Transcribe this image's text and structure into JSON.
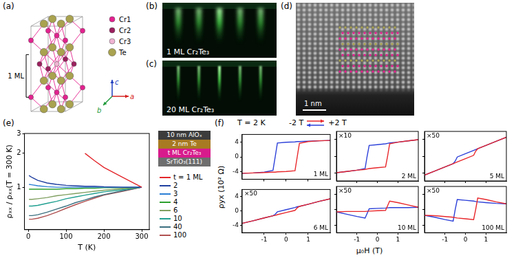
{
  "figure": {
    "a": {
      "letter": "(a)",
      "atoms": [
        {
          "label": "Cr1",
          "color": "#e4218f"
        },
        {
          "label": "Cr2",
          "color": "#9c1f5e"
        },
        {
          "label": "Cr3",
          "color": "#efb3d2"
        },
        {
          "label": "Te",
          "color": "#a9a24f"
        }
      ],
      "layer_label": "1 ML",
      "axes": [
        {
          "label": "c",
          "color": "#1f3fbf"
        },
        {
          "label": "a",
          "color": "#d62020"
        },
        {
          "label": "b",
          "color": "#1f9a3a"
        }
      ]
    },
    "b": {
      "letter": "(b)",
      "label": "1 ML Cr₂Te₃"
    },
    "c": {
      "letter": "(c)",
      "label": "20 ML Cr₂Te₃"
    },
    "d": {
      "letter": "(d)",
      "scale_bar": "1 nm"
    },
    "e": {
      "letter": "(e)"
    },
    "f": {
      "letter": "(f)",
      "condition": "T = 2 K",
      "sweep": {
        "start": "-2 T",
        "end": "+2 T",
        "colors": [
          "#e8262a",
          "#2b3fd8"
        ]
      },
      "x_label": "μ₀H (T)",
      "y_label": "ρyx (10² Ω)"
    }
  },
  "chart_data": [
    {
      "type": "line",
      "x_label": "T (K)",
      "y_label": "ρₓₓ / ρₓₓ(T = 300 K)",
      "x": [
        2,
        10,
        25,
        50,
        75,
        100,
        125,
        150,
        175,
        200,
        250,
        300
      ],
      "series": [
        {
          "name": "t = 1 ML",
          "color": "#e3262b",
          "values": [
            null,
            null,
            null,
            null,
            null,
            null,
            null,
            2.0,
            1.72,
            1.5,
            1.22,
            1
          ]
        },
        {
          "name": "2",
          "color": "#1f3f9f",
          "values": [
            1.27,
            1.22,
            1.15,
            1.09,
            1.06,
            1.04,
            1.03,
            1.02,
            1.02,
            1.01,
            1,
            1
          ]
        },
        {
          "name": "3",
          "color": "#2a7fd4",
          "values": [
            1.06,
            1.05,
            1.03,
            1.01,
            1,
            1,
            1,
            1,
            1,
            1,
            1,
            1
          ]
        },
        {
          "name": "4",
          "color": "#2ca02c",
          "values": [
            0.96,
            0.96,
            0.96,
            0.96,
            0.96,
            0.97,
            0.97,
            0.98,
            0.98,
            0.99,
            0.99,
            1
          ]
        },
        {
          "name": "6",
          "color": "#7f9f5f",
          "values": [
            0.78,
            0.78,
            0.79,
            0.81,
            0.84,
            0.86,
            0.88,
            0.9,
            0.92,
            0.94,
            0.97,
            1
          ]
        },
        {
          "name": "10",
          "color": "#1f9f8f",
          "values": [
            0.68,
            0.68,
            0.69,
            0.72,
            0.75,
            0.79,
            0.82,
            0.85,
            0.88,
            0.91,
            0.95,
            1
          ]
        },
        {
          "name": "40",
          "color": "#3a6f7f",
          "values": [
            0.56,
            0.56,
            0.57,
            0.6,
            0.64,
            0.68,
            0.73,
            0.77,
            0.82,
            0.86,
            0.93,
            1
          ]
        },
        {
          "name": "100",
          "color": "#b05050",
          "values": [
            0.52,
            0.52,
            0.53,
            0.56,
            0.6,
            0.65,
            0.7,
            0.75,
            0.8,
            0.85,
            0.92,
            1
          ]
        }
      ],
      "xlim": [
        -10,
        320
      ],
      "xticks": [
        0,
        100,
        200,
        300
      ],
      "ylim": [
        0.42,
        3
      ],
      "yticks": [
        1,
        2,
        3
      ],
      "log": "y",
      "grid": false,
      "legend": "right",
      "annotations": [
        {
          "text": "10 nm AlOₓ",
          "color": "#3c3c3c"
        },
        {
          "text": "2 nm Te",
          "color": "#a87a22"
        },
        {
          "text": "t ML Cr₂Te₃",
          "color": "#d81b8c"
        },
        {
          "text": "SrTiO₃(111)",
          "color": "#6e6e6e"
        }
      ]
    },
    {
      "type": "line",
      "title": "1 ML",
      "x": [
        -2,
        -1.5,
        -1,
        -0.6,
        -0.5,
        -0.4,
        0,
        0.4,
        0.5,
        0.6,
        1,
        1.5,
        2
      ],
      "series": [
        {
          "color": "#e8262a",
          "values": [
            -4.4,
            -4.3,
            -4.2,
            -4.1,
            -4.1,
            -4,
            -3.9,
            -3.7,
            0,
            3.6,
            4.1,
            4.3,
            4.4
          ]
        },
        {
          "color": "#2b3fd8",
          "values": [
            -4.4,
            -4.3,
            -4.1,
            -3.6,
            0,
            3.7,
            3.9,
            4,
            4.1,
            4.1,
            4.2,
            4.3,
            4.4
          ]
        }
      ],
      "xlim": [
        -2,
        2
      ],
      "xticks": [
        -1,
        0,
        1
      ],
      "ylim": [
        -6,
        6
      ],
      "yticks": [
        -4,
        0,
        4
      ],
      "grid": false,
      "tick_labels": "y"
    },
    {
      "type": "line",
      "title": "2 ML",
      "annotation": "×10",
      "x": [
        -2,
        -1.5,
        -1,
        -0.6,
        -0.5,
        -0.4,
        0,
        0.4,
        0.5,
        0.6,
        1,
        1.5,
        2
      ],
      "series": [
        {
          "color": "#e8262a",
          "values": [
            -4,
            -3.7,
            -3.4,
            -3.2,
            -3.1,
            -3,
            -2.8,
            -2.6,
            0,
            3,
            3.4,
            3.7,
            4
          ]
        },
        {
          "color": "#2b3fd8",
          "values": [
            -4,
            -3.7,
            -3.4,
            -3,
            0,
            2.6,
            2.8,
            3,
            3.1,
            3.2,
            3.4,
            3.7,
            4
          ]
        }
      ],
      "xlim": [
        -2,
        2
      ],
      "xticks": [
        -1,
        0,
        1
      ],
      "ylim": [
        -6,
        6
      ],
      "yticks": [
        -4,
        0,
        4
      ],
      "grid": false,
      "tick_labels": false
    },
    {
      "type": "line",
      "title": "5 ML",
      "annotation": "×50",
      "x": [
        -2,
        -1.5,
        -1,
        -0.6,
        -0.5,
        -0.4,
        0,
        0.4,
        0.5,
        0.6,
        1,
        1.5,
        2
      ],
      "series": [
        {
          "color": "#e8262a",
          "values": [
            -4.6,
            -3.6,
            -2.6,
            -1.8,
            -1.6,
            -1.4,
            -0.6,
            0.2,
            1.2,
            1.8,
            2.6,
            3.6,
            4.6
          ]
        },
        {
          "color": "#2b3fd8",
          "values": [
            -4.6,
            -3.6,
            -2.6,
            -1.8,
            -1.2,
            -0.2,
            0.6,
            1.4,
            1.6,
            1.8,
            2.6,
            3.6,
            4.6
          ]
        }
      ],
      "xlim": [
        -2,
        2
      ],
      "xticks": [
        -1,
        0,
        1
      ],
      "ylim": [
        -6,
        6
      ],
      "yticks": [
        -4,
        0,
        4
      ],
      "grid": false,
      "tick_labels": false
    },
    {
      "type": "line",
      "title": "6 ML",
      "annotation": "×50",
      "x": [
        -2,
        -1.5,
        -1,
        -0.6,
        -0.5,
        -0.4,
        0,
        0.4,
        0.5,
        0.6,
        1,
        1.5,
        2
      ],
      "series": [
        {
          "color": "#e8262a",
          "values": [
            -3.4,
            -2.7,
            -1.9,
            -1.3,
            -1.2,
            -1,
            -0.4,
            0.2,
            0.9,
            1.3,
            1.9,
            2.7,
            3.4
          ]
        },
        {
          "color": "#2b3fd8",
          "values": [
            -3.4,
            -2.7,
            -1.9,
            -1.3,
            -0.9,
            -0.2,
            0.4,
            1,
            1.2,
            1.3,
            1.9,
            2.7,
            3.4
          ]
        }
      ],
      "xlim": [
        -2,
        2
      ],
      "xticks": [
        -1,
        0,
        1
      ],
      "ylim": [
        -6,
        6
      ],
      "yticks": [
        -4,
        0,
        4
      ],
      "grid": false
    },
    {
      "type": "line",
      "title": "10 ML",
      "annotation": "×50",
      "x": [
        -2,
        -1.5,
        -1,
        -0.6,
        -0.5,
        -0.4,
        0,
        0.4,
        0.5,
        0.6,
        1,
        1.5,
        2
      ],
      "series": [
        {
          "color": "#e8262a",
          "values": [
            -0.6,
            -0.5,
            -0.5,
            -0.5,
            -0.45,
            -0.4,
            -0.3,
            -0.2,
            1,
            2.2,
            1.8,
            1.2,
            0.6
          ]
        },
        {
          "color": "#2b3fd8",
          "values": [
            -0.6,
            -1.2,
            -1.8,
            -2.2,
            -1,
            0.2,
            0.3,
            0.4,
            0.45,
            0.5,
            0.5,
            0.5,
            0.6
          ]
        }
      ],
      "xlim": [
        -2,
        2
      ],
      "xticks": [
        -1,
        0,
        1
      ],
      "ylim": [
        -6,
        6
      ],
      "yticks": [
        -4,
        0,
        4
      ],
      "grid": false,
      "tick_labels": "x"
    },
    {
      "type": "line",
      "title": "100 ML",
      "annotation": "×50",
      "x": [
        -2,
        -1.5,
        -1,
        -0.6,
        -0.5,
        -0.4,
        0,
        0.4,
        0.5,
        0.6,
        1,
        1.5,
        2
      ],
      "series": [
        {
          "color": "#e8262a",
          "values": [
            -1.5,
            -1.6,
            -1.8,
            -2,
            -2.1,
            -2.2,
            -2.4,
            -2.6,
            0,
            3,
            2.6,
            2,
            1.5
          ]
        },
        {
          "color": "#2b3fd8",
          "values": [
            -1.5,
            -2,
            -2.6,
            -3,
            0,
            2.6,
            2.4,
            2.2,
            2.1,
            2,
            1.8,
            1.6,
            1.5
          ]
        }
      ],
      "xlim": [
        -2,
        2
      ],
      "xticks": [
        -1,
        0,
        1
      ],
      "ylim": [
        -6,
        6
      ],
      "yticks": [
        -4,
        0,
        4
      ],
      "grid": false,
      "tick_labels": "x"
    }
  ]
}
